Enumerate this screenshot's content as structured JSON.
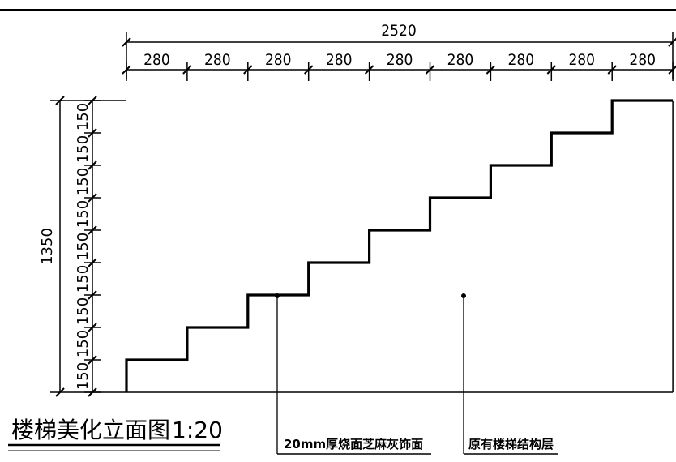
{
  "drawing": {
    "title": "楼梯美化立面图",
    "scale": "1:20",
    "total_width_label": "2520",
    "total_height_label": "1350",
    "tread_labels": [
      "280",
      "280",
      "280",
      "280",
      "280",
      "280",
      "280",
      "280",
      "280"
    ],
    "riser_labels": [
      "150",
      "150",
      "150",
      "150",
      "150",
      "150",
      "150",
      "150",
      "150"
    ],
    "callouts": {
      "finish_layer": "20mm厚烧面芝麻灰饰面",
      "structure_layer": "原有楼梯结构层"
    }
  }
}
